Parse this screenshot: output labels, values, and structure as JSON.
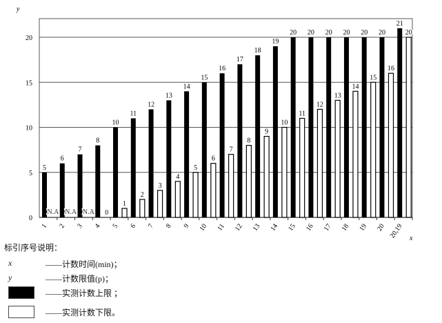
{
  "chart_data": {
    "type": "bar",
    "xlabel": "x",
    "ylabel": "y",
    "ylim": [
      0,
      22
    ],
    "yticks": [
      0,
      5,
      10,
      15,
      20
    ],
    "grid": true,
    "categories": [
      "1",
      "2",
      "3",
      "4",
      "5",
      "6",
      "7",
      "8",
      "9",
      "10",
      "11",
      "12",
      "13",
      "14",
      "15",
      "16",
      "17",
      "18",
      "19",
      "20",
      "20,19"
    ],
    "series": [
      {
        "name": "实测计数上限",
        "color": "#000000",
        "values": [
          5,
          6,
          7,
          8,
          10,
          11,
          12,
          13,
          14,
          15,
          16,
          17,
          18,
          19,
          20,
          20,
          20,
          20,
          20,
          20,
          21
        ],
        "labels": [
          "5",
          "6",
          "7",
          "8",
          "10",
          "11",
          "12",
          "13",
          "14",
          "15",
          "16",
          "17",
          "18",
          "19",
          "20",
          "20",
          "20",
          "20",
          "20",
          "20",
          "21"
        ]
      },
      {
        "name": "实测计数下限",
        "color": "#ffffff",
        "values": [
          null,
          null,
          null,
          0,
          1,
          2,
          3,
          4,
          5,
          6,
          7,
          8,
          9,
          10,
          11,
          12,
          13,
          14,
          15,
          16,
          20
        ],
        "labels": [
          "N.A",
          "N.A",
          "N.A",
          "0",
          "1",
          "2",
          "3",
          "4",
          "5",
          "6",
          "7",
          "8",
          "9",
          "10",
          "11",
          "12",
          "13",
          "14",
          "15",
          "16",
          "20"
        ]
      }
    ]
  },
  "legend": {
    "title": "标引序号说明：",
    "items": [
      {
        "symbol": "x",
        "text": "——计数时间(min)；"
      },
      {
        "symbol": "y",
        "text": "——计数限值(p)；"
      },
      {
        "symbol": "black-box",
        "text": "——实测计数上限 ；"
      },
      {
        "symbol": "white-box",
        "text": "——实测计数下限。"
      }
    ]
  }
}
